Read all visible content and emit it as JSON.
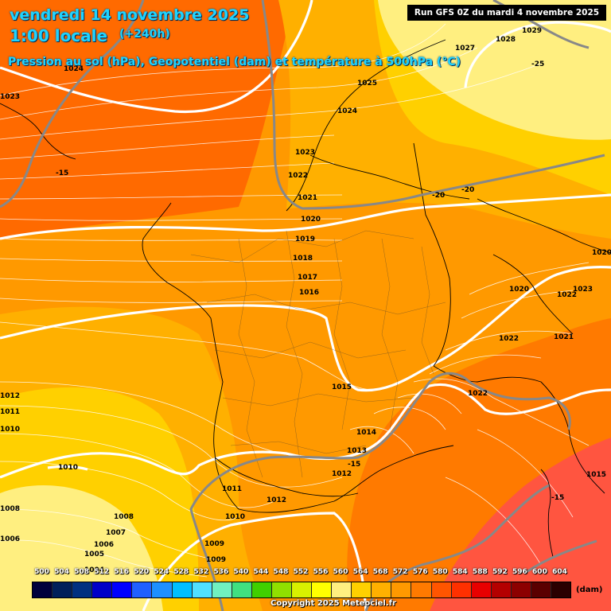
{
  "header": {
    "date": "vendredi 14 novembre 2025",
    "time": "1:00 locale",
    "step": "(+240h)",
    "description": "Pression au sol (hPa), Geopotentiel (dam) et température à 500hPa (°C)"
  },
  "run_info": "Run GFS 0Z du mardi 4 novembre 2025",
  "copyright": "Copyright 2025 Meteociel.fr",
  "legend": {
    "unit": "(dam)",
    "values": [
      "500",
      "504",
      "508",
      "512",
      "516",
      "520",
      "524",
      "528",
      "532",
      "536",
      "540",
      "544",
      "548",
      "552",
      "556",
      "560",
      "564",
      "568",
      "572",
      "576",
      "580",
      "584",
      "588",
      "592",
      "596",
      "600",
      "604"
    ],
    "colors": [
      "#00003c",
      "#001f5a",
      "#003080",
      "#0000c8",
      "#0000ff",
      "#2060ff",
      "#1e90ff",
      "#00bfff",
      "#50e0ff",
      "#70f0c0",
      "#40e080",
      "#40d000",
      "#90e000",
      "#d8f000",
      "#ffff00",
      "#ffef80",
      "#ffd000",
      "#ffb000",
      "#ff9900",
      "#ff7a00",
      "#ff5500",
      "#ff3000",
      "#e80000",
      "#b40000",
      "#8c0000",
      "#5a0000",
      "#2a0000"
    ]
  },
  "map": {
    "geopotential_zones": [
      "556",
      "560",
      "564",
      "568",
      "572",
      "576",
      "580"
    ],
    "isobars": [
      {
        "label": "1029"
      },
      {
        "label": "1028"
      },
      {
        "label": "1027"
      },
      {
        "label": "1025"
      },
      {
        "label": "1024"
      },
      {
        "label": "1024"
      },
      {
        "label": "1023"
      },
      {
        "label": "1023"
      },
      {
        "label": "1022"
      },
      {
        "label": "1021"
      },
      {
        "label": "1020"
      },
      {
        "label": "1019"
      },
      {
        "label": "1018"
      },
      {
        "label": "1017"
      },
      {
        "label": "1016"
      },
      {
        "label": "1015"
      },
      {
        "label": "1014"
      },
      {
        "label": "1013"
      },
      {
        "label": "1012"
      },
      {
        "label": "1012"
      },
      {
        "label": "1011"
      },
      {
        "label": "1011"
      },
      {
        "label": "1010"
      },
      {
        "label": "1010"
      },
      {
        "label": "1010"
      },
      {
        "label": "1009"
      },
      {
        "label": "1009"
      },
      {
        "label": "1008"
      },
      {
        "label": "1008"
      },
      {
        "label": "1007"
      },
      {
        "label": "1006"
      },
      {
        "label": "1006"
      },
      {
        "label": "1005"
      },
      {
        "label": "1004"
      },
      {
        "label": "1020"
      },
      {
        "label": "1020"
      },
      {
        "label": "1023"
      },
      {
        "label": "1022"
      },
      {
        "label": "1022"
      },
      {
        "label": "1021"
      },
      {
        "label": "1022"
      },
      {
        "label": "1015"
      },
      {
        "label": "1012"
      }
    ],
    "temperatures_500hpa": [
      "-25",
      "-20",
      "-20",
      "-15",
      "-15",
      "-15"
    ]
  }
}
